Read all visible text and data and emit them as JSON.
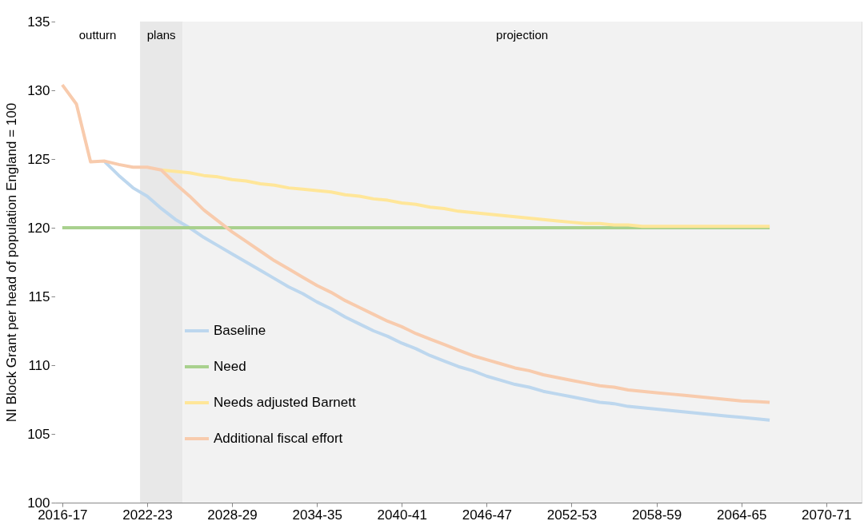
{
  "chart_data": {
    "type": "line",
    "ylabel": "NI Block Grant per head of population England = 100",
    "categories": [
      "2016-17",
      null,
      null,
      null,
      null,
      null,
      "2022-23",
      null,
      null,
      null,
      null,
      null,
      "2028-29",
      null,
      null,
      null,
      null,
      null,
      "2034-35",
      null,
      null,
      null,
      null,
      null,
      "2040-41",
      null,
      null,
      null,
      null,
      null,
      "2046-47",
      null,
      null,
      null,
      null,
      null,
      "2052-53",
      null,
      null,
      null,
      null,
      null,
      "2058-59",
      null,
      null,
      null,
      null,
      null,
      "2064-65",
      null,
      null,
      null,
      null,
      null,
      "2070-71",
      null,
      null
    ],
    "ylim": [
      100,
      135
    ],
    "yticks": [
      100,
      105,
      110,
      115,
      120,
      125,
      130,
      135
    ],
    "bands": [
      {
        "axis": "x",
        "from": "2016-17",
        "to": "2021-22",
        "label": "outturn",
        "color": "#ffffff"
      },
      {
        "axis": "x",
        "from": "2022-23",
        "to": "2024-25",
        "label": "plans",
        "color": "#e8e8e8"
      },
      {
        "axis": "x",
        "from": "2025-26",
        "to": "2072-73",
        "label": "projection",
        "color": "#f2f2f2"
      }
    ],
    "series": [
      {
        "name": "Baseline",
        "color": "#bdd7ee",
        "values": [
          null,
          null,
          null,
          124.8,
          123.8,
          122.9,
          122.3,
          121.4,
          120.6,
          120.0,
          119.3,
          118.7,
          118.1,
          117.5,
          116.9,
          116.3,
          115.7,
          115.2,
          114.6,
          114.1,
          113.5,
          113.0,
          112.5,
          112.1,
          111.6,
          111.2,
          110.7,
          110.3,
          109.9,
          109.6,
          109.2,
          108.9,
          108.6,
          108.4,
          108.1,
          107.9,
          107.7,
          107.5,
          107.3,
          107.2,
          107.0,
          106.9,
          106.8,
          106.7,
          106.6,
          106.5,
          106.4,
          106.3,
          106.2,
          106.1,
          106.0,
          null,
          null,
          null,
          null,
          null,
          null
        ]
      },
      {
        "name": "Need",
        "color": "#a9d18e",
        "values": [
          120,
          120,
          120,
          120,
          120,
          120,
          120,
          120,
          120,
          120,
          120,
          120,
          120,
          120,
          120,
          120,
          120,
          120,
          120,
          120,
          120,
          120,
          120,
          120,
          120,
          120,
          120,
          120,
          120,
          120,
          120,
          120,
          120,
          120,
          120,
          120,
          120,
          120,
          120,
          120,
          120,
          120,
          120,
          120,
          120,
          120,
          120,
          120,
          120,
          120,
          120,
          null,
          null,
          null,
          null,
          null,
          null
        ]
      },
      {
        "name": "Needs adjusted Barnett",
        "color": "#ffe699",
        "values": [
          null,
          null,
          null,
          null,
          null,
          null,
          null,
          124.2,
          124.1,
          124.0,
          123.8,
          123.7,
          123.5,
          123.4,
          123.2,
          123.1,
          122.9,
          122.8,
          122.7,
          122.6,
          122.4,
          122.3,
          122.1,
          122.0,
          121.8,
          121.7,
          121.5,
          121.4,
          121.2,
          121.1,
          121.0,
          120.9,
          120.8,
          120.7,
          120.6,
          120.5,
          120.4,
          120.3,
          120.3,
          120.2,
          120.2,
          120.1,
          120.1,
          120.1,
          120.1,
          120.1,
          120.1,
          120.1,
          120.1,
          120.1,
          120.1,
          null,
          null,
          null,
          null,
          null,
          null
        ]
      },
      {
        "name": "Additional fiscal effort",
        "color": "#f8cbad",
        "values": [
          130.4,
          129.0,
          124.8,
          124.85,
          124.6,
          124.4,
          124.4,
          124.2,
          123.2,
          122.3,
          121.3,
          120.5,
          119.7,
          119.0,
          118.3,
          117.6,
          117.0,
          116.4,
          115.8,
          115.3,
          114.7,
          114.2,
          113.7,
          113.2,
          112.8,
          112.3,
          111.9,
          111.5,
          111.1,
          110.7,
          110.4,
          110.1,
          109.8,
          109.6,
          109.3,
          109.1,
          108.9,
          108.7,
          108.5,
          108.4,
          108.2,
          108.1,
          108.0,
          107.9,
          107.8,
          107.7,
          107.6,
          107.5,
          107.4,
          107.35,
          107.3,
          null,
          null,
          null,
          null,
          null,
          null
        ]
      }
    ],
    "legend": "bottom left",
    "line_style": "solid",
    "marker": "none"
  }
}
